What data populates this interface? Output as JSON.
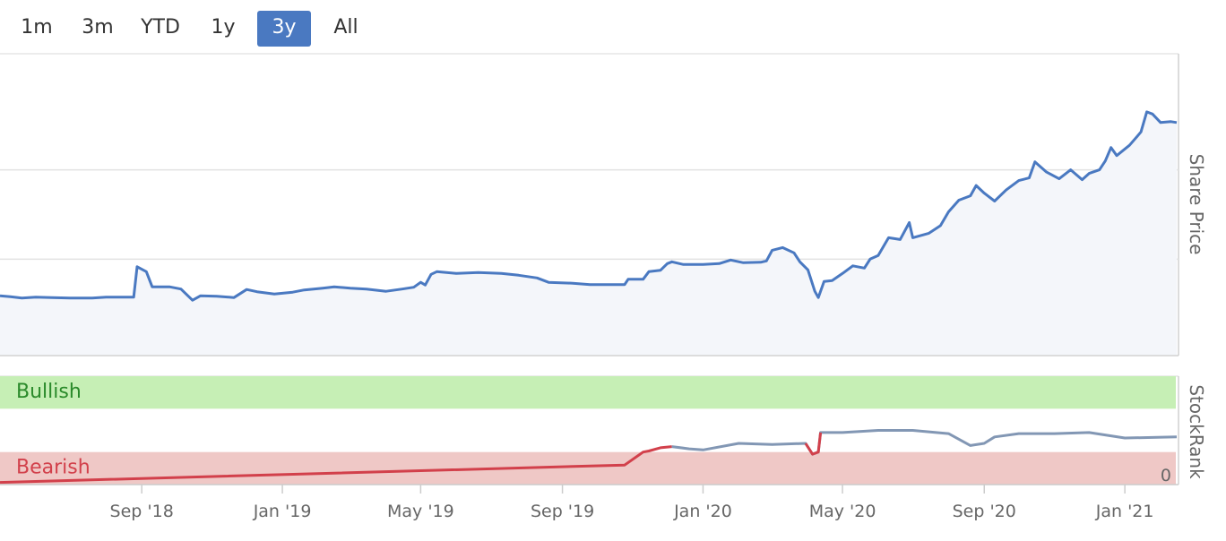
{
  "range_selector": {
    "buttons": [
      "1m",
      "3m",
      "YTD",
      "1y",
      "3y",
      "All"
    ],
    "active": "3y"
  },
  "colors": {
    "price_line": "#4a79c1",
    "price_fill": "#f4f6fa",
    "rank_line_bearish": "#d2404b",
    "rank_line": "#8297b4",
    "bullish_band": "#c6efb5",
    "bearish_band": "#efc8c6",
    "bullish_text": "#2a8a2a",
    "bearish_text": "#d2404b",
    "active_button": "#4a79c1"
  },
  "chart_data": [
    {
      "type": "area",
      "ylabel": "Share Price",
      "ylim": [
        0,
        620
      ],
      "yticks": [
        0,
        200,
        400
      ],
      "grid": true,
      "x_ticks": [
        "Sep '18",
        "Jan '19",
        "May '19",
        "Sep '19",
        "Jan '20",
        "May '20",
        "Sep '20",
        "Jan '21"
      ],
      "series": [
        {
          "points": [
            [
              "2018-05-01",
              118
            ],
            [
              "2018-05-10",
              116
            ],
            [
              "2018-05-20",
              113
            ],
            [
              "2018-06-01",
              115
            ],
            [
              "2018-06-15",
              114
            ],
            [
              "2018-07-01",
              113
            ],
            [
              "2018-07-20",
              113
            ],
            [
              "2018-08-01",
              115
            ],
            [
              "2018-08-25",
              115
            ],
            [
              "2018-08-28",
              183
            ],
            [
              "2018-09-05",
              172
            ],
            [
              "2018-09-10",
              138
            ],
            [
              "2018-09-25",
              138
            ],
            [
              "2018-10-05",
              133
            ],
            [
              "2018-10-15",
              108
            ],
            [
              "2018-10-22",
              118
            ],
            [
              "2018-11-05",
              117
            ],
            [
              "2018-11-20",
              114
            ],
            [
              "2018-12-01",
              132
            ],
            [
              "2018-12-10",
              127
            ],
            [
              "2018-12-25",
              122
            ],
            [
              "2019-01-10",
              126
            ],
            [
              "2019-01-20",
              131
            ],
            [
              "2019-02-05",
              135
            ],
            [
              "2019-02-15",
              138
            ],
            [
              "2019-03-01",
              135
            ],
            [
              "2019-03-15",
              133
            ],
            [
              "2019-04-01",
              128
            ],
            [
              "2019-04-15",
              133
            ],
            [
              "2019-04-25",
              137
            ],
            [
              "2019-05-01",
              148
            ],
            [
              "2019-05-05",
              142
            ],
            [
              "2019-05-10",
              166
            ],
            [
              "2019-05-15",
              172
            ],
            [
              "2019-06-01",
              168
            ],
            [
              "2019-06-20",
              170
            ],
            [
              "2019-07-10",
              168
            ],
            [
              "2019-07-25",
              164
            ],
            [
              "2019-08-10",
              158
            ],
            [
              "2019-08-20",
              148
            ],
            [
              "2019-09-10",
              146
            ],
            [
              "2019-09-25",
              143
            ],
            [
              "2019-10-10",
              143
            ],
            [
              "2019-10-25",
              143
            ],
            [
              "2019-10-28",
              155
            ],
            [
              "2019-11-10",
              155
            ],
            [
              "2019-11-15",
              172
            ],
            [
              "2019-11-25",
              175
            ],
            [
              "2019-12-01",
              190
            ],
            [
              "2019-12-05",
              194
            ],
            [
              "2019-12-15",
              188
            ],
            [
              "2020-01-01",
              188
            ],
            [
              "2020-01-15",
              190
            ],
            [
              "2020-01-25",
              198
            ],
            [
              "2020-02-05",
              192
            ],
            [
              "2020-02-20",
              193
            ],
            [
              "2020-02-25",
              196
            ],
            [
              "2020-03-01",
              220
            ],
            [
              "2020-03-10",
              226
            ],
            [
              "2020-03-20",
              214
            ],
            [
              "2020-03-25",
              194
            ],
            [
              "2020-04-01",
              176
            ],
            [
              "2020-04-07",
              128
            ],
            [
              "2020-04-10",
              114
            ],
            [
              "2020-04-15",
              150
            ],
            [
              "2020-04-22",
              152
            ],
            [
              "2020-05-01",
              168
            ],
            [
              "2020-05-10",
              185
            ],
            [
              "2020-05-20",
              180
            ],
            [
              "2020-05-25",
              200
            ],
            [
              "2020-06-01",
              208
            ],
            [
              "2020-06-10",
              248
            ],
            [
              "2020-06-20",
              244
            ],
            [
              "2020-06-28",
              282
            ],
            [
              "2020-07-01",
              248
            ],
            [
              "2020-07-15",
              258
            ],
            [
              "2020-07-25",
              275
            ],
            [
              "2020-08-01",
              306
            ],
            [
              "2020-08-10",
              332
            ],
            [
              "2020-08-20",
              342
            ],
            [
              "2020-08-25",
              365
            ],
            [
              "2020-09-01",
              348
            ],
            [
              "2020-09-10",
              330
            ],
            [
              "2020-09-20",
              355
            ],
            [
              "2020-10-01",
              376
            ],
            [
              "2020-10-10",
              382
            ],
            [
              "2020-10-15",
              418
            ],
            [
              "2020-10-25",
              395
            ],
            [
              "2020-11-05",
              380
            ],
            [
              "2020-11-15",
              400
            ],
            [
              "2020-11-25",
              378
            ],
            [
              "2020-12-01",
              392
            ],
            [
              "2020-12-10",
              400
            ],
            [
              "2020-12-15",
              420
            ],
            [
              "2020-12-20",
              450
            ],
            [
              "2020-12-25",
              432
            ],
            [
              "2021-01-05",
              455
            ],
            [
              "2021-01-10",
              470
            ],
            [
              "2021-01-15",
              485
            ],
            [
              "2021-01-20",
              530
            ],
            [
              "2021-01-25",
              525
            ],
            [
              "2021-02-01",
              506
            ],
            [
              "2021-02-10",
              508
            ],
            [
              "2021-02-15",
              506
            ]
          ]
        }
      ]
    },
    {
      "type": "line",
      "ylabel": "StockRank",
      "ylim": [
        0,
        100
      ],
      "yticks": [
        0
      ],
      "bands": [
        {
          "label": "Bullish",
          "from": 70,
          "to": 100
        },
        {
          "label": "Bearish",
          "from": 0,
          "to": 30
        }
      ],
      "series": [
        {
          "name": "",
          "points": [
            [
              "2018-05-01",
              2
            ],
            [
              "2019-10-25",
              18
            ],
            [
              "2019-11-10",
              30
            ],
            [
              "2019-11-15",
              31
            ],
            [
              "2019-11-25",
              34
            ],
            [
              "2019-12-05",
              35
            ],
            [
              "2019-12-20",
              33
            ],
            [
              "2020-01-01",
              32
            ],
            [
              "2020-02-01",
              38
            ],
            [
              "2020-03-01",
              37
            ],
            [
              "2020-03-30",
              38
            ],
            [
              "2020-04-05",
              28
            ],
            [
              "2020-04-10",
              30
            ],
            [
              "2020-04-12",
              48
            ],
            [
              "2020-05-01",
              48
            ],
            [
              "2020-06-01",
              50
            ],
            [
              "2020-07-01",
              50
            ],
            [
              "2020-08-01",
              47
            ],
            [
              "2020-08-20",
              36
            ],
            [
              "2020-09-01",
              38
            ],
            [
              "2020-09-10",
              44
            ],
            [
              "2020-10-01",
              47
            ],
            [
              "2020-11-01",
              47
            ],
            [
              "2020-12-01",
              48
            ],
            [
              "2021-01-01",
              43
            ],
            [
              "2021-02-15",
              44
            ]
          ]
        }
      ]
    }
  ]
}
